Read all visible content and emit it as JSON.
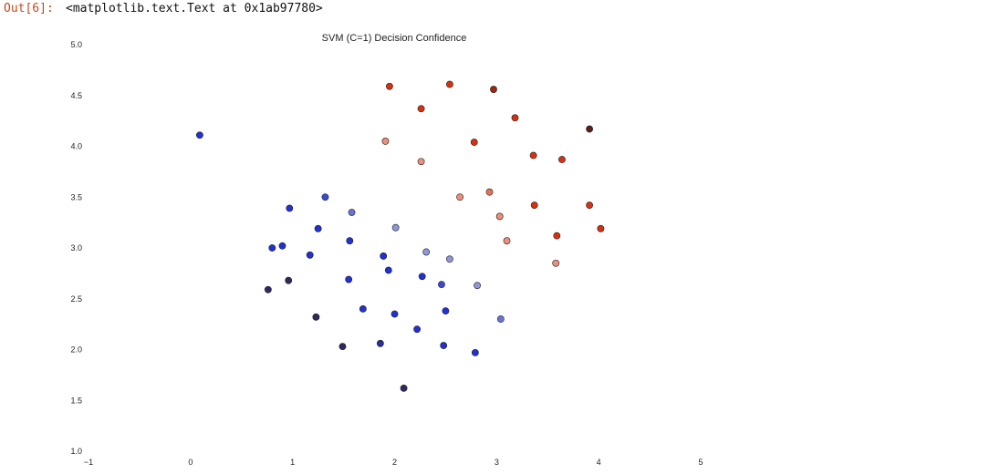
{
  "cell": {
    "prompt": "Out[6]:",
    "output": "<matplotlib.text.Text at 0x1ab97780>"
  },
  "chart_data": {
    "type": "scatter",
    "title": "SVM (C=1) Decision Confidence",
    "xlabel": "",
    "ylabel": "",
    "xlim": [
      -1,
      5
    ],
    "ylim": [
      1.0,
      5.0
    ],
    "grid": false,
    "x_ticks": [
      "−1",
      "0",
      "1",
      "2",
      "3",
      "4",
      "5"
    ],
    "y_ticks": [
      "1.0",
      "1.5",
      "2.0",
      "2.5",
      "3.0",
      "3.5",
      "4.0",
      "4.5",
      "5.0"
    ],
    "points": [
      {
        "x": 0.09,
        "y": 4.11,
        "color": "#2231d6"
      },
      {
        "x": 1.95,
        "y": 4.59,
        "color": "#d9300f"
      },
      {
        "x": 2.54,
        "y": 4.61,
        "color": "#d9300f"
      },
      {
        "x": 2.97,
        "y": 4.56,
        "color": "#a3260c"
      },
      {
        "x": 2.26,
        "y": 4.37,
        "color": "#d9300f"
      },
      {
        "x": 3.18,
        "y": 4.28,
        "color": "#d9300f"
      },
      {
        "x": 3.91,
        "y": 4.17,
        "color": "#5a1f1a"
      },
      {
        "x": 1.91,
        "y": 4.05,
        "color": "#ef8e7a"
      },
      {
        "x": 2.78,
        "y": 4.04,
        "color": "#d9300f"
      },
      {
        "x": 3.36,
        "y": 3.91,
        "color": "#d9300f"
      },
      {
        "x": 3.64,
        "y": 3.87,
        "color": "#d9300f"
      },
      {
        "x": 2.26,
        "y": 3.85,
        "color": "#ef8e7a"
      },
      {
        "x": 2.93,
        "y": 3.55,
        "color": "#ea7055"
      },
      {
        "x": 2.64,
        "y": 3.5,
        "color": "#ef8e7a"
      },
      {
        "x": 3.37,
        "y": 3.42,
        "color": "#d9300f"
      },
      {
        "x": 3.91,
        "y": 3.42,
        "color": "#d9300f"
      },
      {
        "x": 3.03,
        "y": 3.31,
        "color": "#ef8e7a"
      },
      {
        "x": 4.02,
        "y": 3.19,
        "color": "#d9300f"
      },
      {
        "x": 3.59,
        "y": 3.12,
        "color": "#d9300f"
      },
      {
        "x": 3.1,
        "y": 3.07,
        "color": "#ef8e7a"
      },
      {
        "x": 3.58,
        "y": 2.85,
        "color": "#ef8e7a"
      },
      {
        "x": 1.32,
        "y": 3.5,
        "color": "#3a48d8"
      },
      {
        "x": 0.97,
        "y": 3.39,
        "color": "#2231d6"
      },
      {
        "x": 1.58,
        "y": 3.35,
        "color": "#6a74d8"
      },
      {
        "x": 2.01,
        "y": 3.2,
        "color": "#8f97dc"
      },
      {
        "x": 1.25,
        "y": 3.19,
        "color": "#2231d6"
      },
      {
        "x": 1.56,
        "y": 3.07,
        "color": "#2231d6"
      },
      {
        "x": 0.9,
        "y": 3.02,
        "color": "#2231d6"
      },
      {
        "x": 0.8,
        "y": 3.0,
        "color": "#2231d6"
      },
      {
        "x": 2.31,
        "y": 2.96,
        "color": "#8f97dc"
      },
      {
        "x": 1.17,
        "y": 2.93,
        "color": "#2231d6"
      },
      {
        "x": 1.89,
        "y": 2.92,
        "color": "#2231d6"
      },
      {
        "x": 2.54,
        "y": 2.89,
        "color": "#8f97dc"
      },
      {
        "x": 1.94,
        "y": 2.78,
        "color": "#2231d6"
      },
      {
        "x": 2.27,
        "y": 2.72,
        "color": "#2231d6"
      },
      {
        "x": 1.55,
        "y": 2.69,
        "color": "#2231d6"
      },
      {
        "x": 0.96,
        "y": 2.68,
        "color": "#2c2a60"
      },
      {
        "x": 2.46,
        "y": 2.64,
        "color": "#3a48d8"
      },
      {
        "x": 2.81,
        "y": 2.63,
        "color": "#8f97dc"
      },
      {
        "x": 0.76,
        "y": 2.59,
        "color": "#2c2a60"
      },
      {
        "x": 1.69,
        "y": 2.4,
        "color": "#2231d6"
      },
      {
        "x": 2.5,
        "y": 2.38,
        "color": "#2231d6"
      },
      {
        "x": 2.0,
        "y": 2.35,
        "color": "#2231d6"
      },
      {
        "x": 1.23,
        "y": 2.32,
        "color": "#2c2a60"
      },
      {
        "x": 3.04,
        "y": 2.3,
        "color": "#6a74d8"
      },
      {
        "x": 2.22,
        "y": 2.2,
        "color": "#2231d6"
      },
      {
        "x": 1.86,
        "y": 2.06,
        "color": "#2a2f9e"
      },
      {
        "x": 1.49,
        "y": 2.03,
        "color": "#2c2a60"
      },
      {
        "x": 2.48,
        "y": 2.04,
        "color": "#2231d6"
      },
      {
        "x": 2.79,
        "y": 1.97,
        "color": "#2231d6"
      },
      {
        "x": 2.09,
        "y": 1.62,
        "color": "#2c2a60"
      }
    ]
  }
}
